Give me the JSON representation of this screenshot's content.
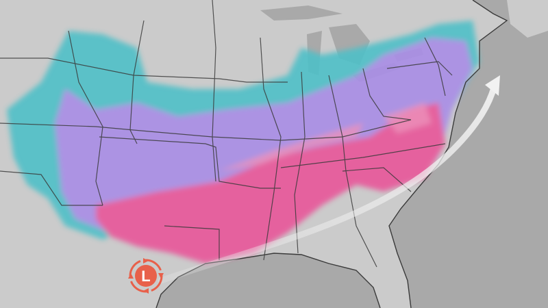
{
  "map": {
    "low_pressure": {
      "label": "L",
      "icon": "low-pressure-icon",
      "color": "#e8604a"
    },
    "colors": {
      "land": "#cbcbcb",
      "water": "#a9a9a9",
      "borders": "#3a3a3a",
      "snow": "#4fc0c8",
      "sleet": "#a98ee6",
      "freezing_rain": "#e8579a",
      "storm_track_arrow": "#f2f2f2"
    }
  }
}
